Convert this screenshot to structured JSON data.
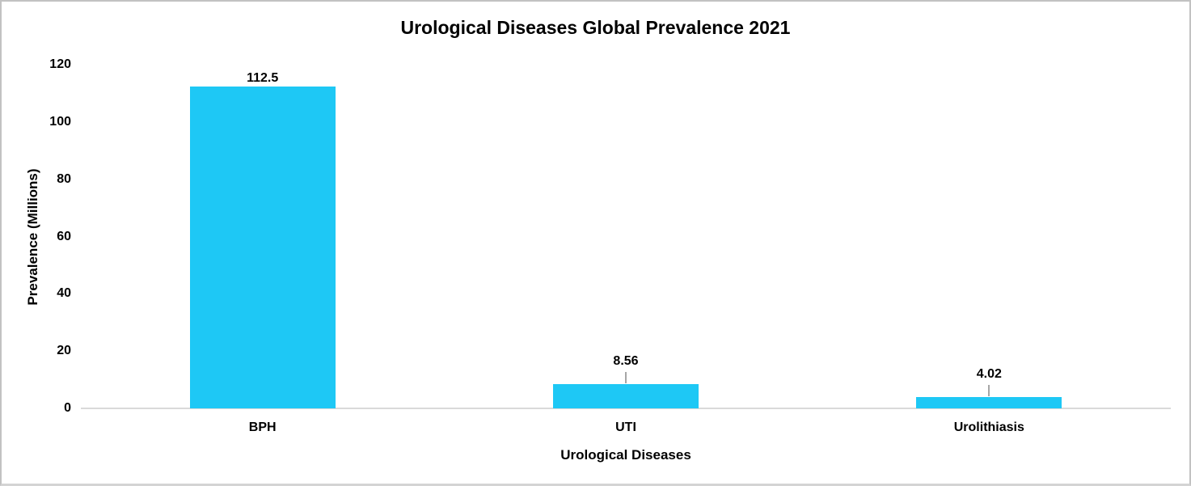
{
  "chart_data": {
    "type": "bar",
    "title": "Urological Diseases Global Prevalence 2021",
    "xlabel": "Urological Diseases",
    "ylabel": "Prevalence (Millions)",
    "categories": [
      "BPH",
      "UTI",
      "Urolithiasis"
    ],
    "values": [
      112.5,
      8.56,
      4.02
    ],
    "data_labels": [
      "112.5",
      "8.56",
      "4.02"
    ],
    "label_leader_lines": [
      false,
      true,
      true
    ],
    "yticks": [
      0,
      20,
      40,
      60,
      80,
      100,
      120
    ],
    "ylim": [
      0,
      120
    ],
    "grid": false,
    "legend": false,
    "colors": {
      "bar": "#1EC8F5",
      "axis_line": "#D9D9D9",
      "leader_line": "#A6A6A6",
      "text": "#000000",
      "background": "#FFFFFF"
    }
  }
}
